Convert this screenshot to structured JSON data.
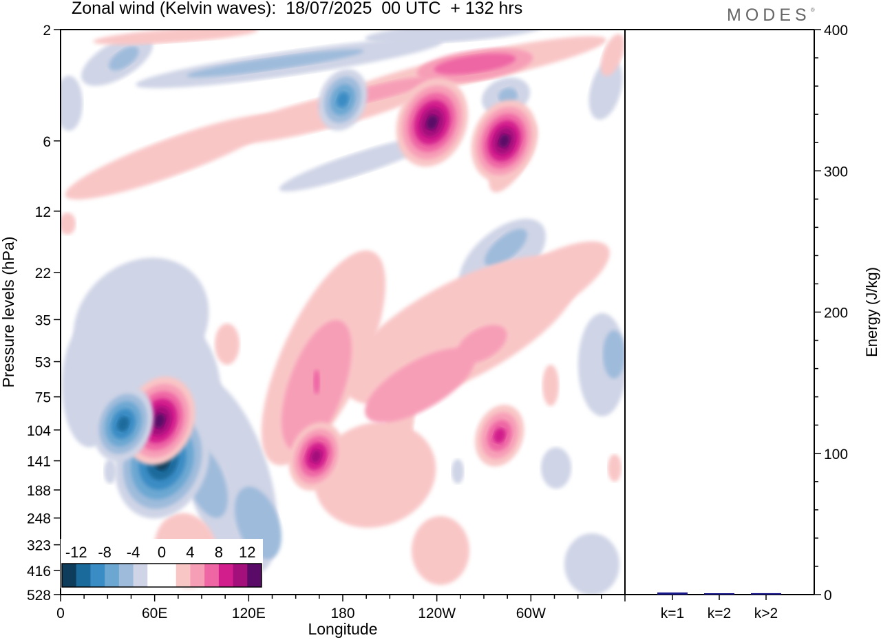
{
  "header": {
    "title": "Zonal wind (Kelvin waves):  18/07/2025  00 UTC  + 132 hrs",
    "logo_text": "MODES",
    "logo_mark": "®"
  },
  "chart_data": [
    {
      "type": "heatmap",
      "xlabel": "Longitude",
      "ylabel": "Pressure levels (hPa)",
      "x_ticks": [
        "0",
        "60E",
        "120E",
        "180",
        "120W",
        "60W"
      ],
      "y_ticks": [
        "2",
        "6",
        "12",
        "22",
        "35",
        "53",
        "75",
        "104",
        "141",
        "188",
        "248",
        "323",
        "416",
        "528"
      ],
      "colorbar": {
        "labels": [
          "-12",
          "-8",
          "-4",
          "0",
          "4",
          "8",
          "12"
        ],
        "colors": [
          "#0d3d5a",
          "#1b6a9c",
          "#3a8cc4",
          "#6ca7d2",
          "#9ebbdb",
          "#cfd4e6",
          "#ffffff",
          "#ffffff",
          "#f9c6c6",
          "#f79eb7",
          "#ee66a4",
          "#d11e8c",
          "#a3107c",
          "#5a0a67"
        ]
      },
      "features": [
        {
          "sign": "negative",
          "max_abs": 14,
          "lon": 65,
          "level": 141
        },
        {
          "sign": "positive",
          "max_abs": 10,
          "lon": 63,
          "level": 95
        },
        {
          "sign": "negative",
          "max_abs": 8,
          "lon": 40,
          "level": 98
        },
        {
          "sign": "positive",
          "max_abs": 10,
          "lon": 237,
          "level": 5
        },
        {
          "sign": "positive",
          "max_abs": 9,
          "lon": 283,
          "level": 6
        },
        {
          "sign": "negative",
          "max_abs": 6,
          "lon": 180,
          "level": 4
        },
        {
          "sign": "positive",
          "max_abs": 7,
          "lon": 163,
          "level": 135
        },
        {
          "sign": "positive",
          "max_abs": 6,
          "lon": 280,
          "level": 110
        }
      ]
    },
    {
      "type": "bar",
      "categories": [
        "k=1",
        "k=2",
        "k>2"
      ],
      "values": [
        1.5,
        0.6,
        1.0
      ],
      "ylabel": "Energy (J/kg)",
      "ylim": [
        0,
        400
      ],
      "y_ticks": [
        "0",
        "100",
        "200",
        "300",
        "400"
      ],
      "bar_color": "#1a1a8c"
    }
  ]
}
